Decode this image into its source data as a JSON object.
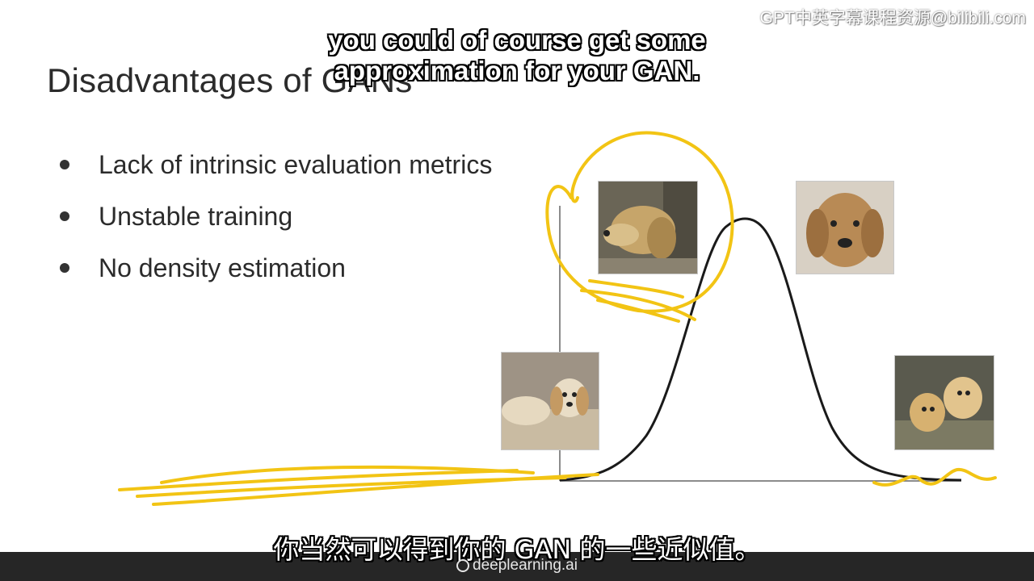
{
  "slide": {
    "title": "Disadvantages of GANs",
    "bullets": [
      "Lack of intrinsic evaluation metrics",
      "Unstable training",
      "No density estimation"
    ]
  },
  "captions": {
    "english_line1": "you could of course get some",
    "english_line2": "approximation for your GAN.",
    "chinese": "你当然可以得到你的 GAN 的一些近似值。"
  },
  "watermark": "GPT中英字幕课程资源@bilibili.com",
  "footer": {
    "brand": "deeplearning.ai"
  },
  "colors": {
    "annotation": "#f2c414",
    "curve": "#1a1a1a",
    "axis": "#555555",
    "footer_bg": "#262626"
  },
  "icons": [
    "deeplearning-logo-icon",
    "dog-photo-icon"
  ]
}
